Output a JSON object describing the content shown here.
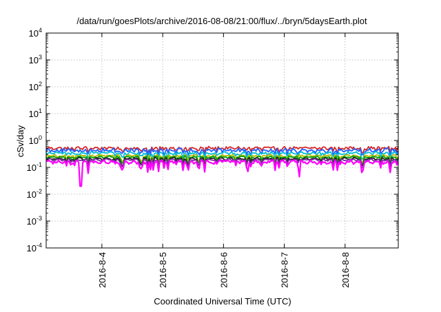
{
  "chart_data": {
    "type": "line",
    "title": "/data/run/goesPlots/archive/2016-08-08/21:00/flux/../bryn/5daysEarth.plot",
    "xlabel": "Coordinated Universal Time (UTC)",
    "ylabel": "cSv/day",
    "yscale": "log",
    "ylim": [
      0.0001,
      10000
    ],
    "xlim": [
      "2016-08-03 02:00",
      "2016-08-08 21:00"
    ],
    "grid": true,
    "legend": "none",
    "x_ticks": [
      "2016-8-4",
      "2016-8-5",
      "2016-8-6",
      "2016-8-7",
      "2016-8-8"
    ],
    "y_ticks": [
      {
        "value": 0.0001,
        "base": "10",
        "exp": "-4"
      },
      {
        "value": 0.001,
        "base": "10",
        "exp": "-3"
      },
      {
        "value": 0.01,
        "base": "10",
        "exp": "-2"
      },
      {
        "value": 0.1,
        "base": "10",
        "exp": "-1"
      },
      {
        "value": 1,
        "base": "10",
        "exp": "0"
      },
      {
        "value": 10,
        "base": "10",
        "exp": "1"
      },
      {
        "value": 100,
        "base": "10",
        "exp": "2"
      },
      {
        "value": 1000,
        "base": "10",
        "exp": "3"
      },
      {
        "value": 10000,
        "base": "10",
        "exp": "4"
      }
    ],
    "series": [
      {
        "color": "#d62728",
        "level": 0.52,
        "noise": 0.12,
        "dips": []
      },
      {
        "color": "#1f5fff",
        "level": 0.44,
        "noise": 0.16,
        "dips": []
      },
      {
        "color": "#00bcd4",
        "level": 0.34,
        "noise": 0.1,
        "dips": []
      },
      {
        "color": "#b5b800",
        "level": 0.27,
        "noise": 0.08,
        "dips": []
      },
      {
        "color": "#00a000",
        "level": 0.24,
        "noise": 0.07,
        "dips": []
      },
      {
        "color": "#202020",
        "level": 0.21,
        "noise": 0.07,
        "dips": []
      },
      {
        "color": "#7a2fa0",
        "level": 0.19,
        "noise": 0.07,
        "dips": []
      },
      {
        "color": "#ff00ff",
        "level": 0.16,
        "noise": 0.14,
        "dips": [
          {
            "date": "2016-08-03 15:40",
            "value": 0.02
          },
          {
            "date": "2016-08-06 09:40",
            "value": 0.07
          },
          {
            "date": "2016-08-07 06:00",
            "value": 0.045
          }
        ]
      }
    ]
  }
}
